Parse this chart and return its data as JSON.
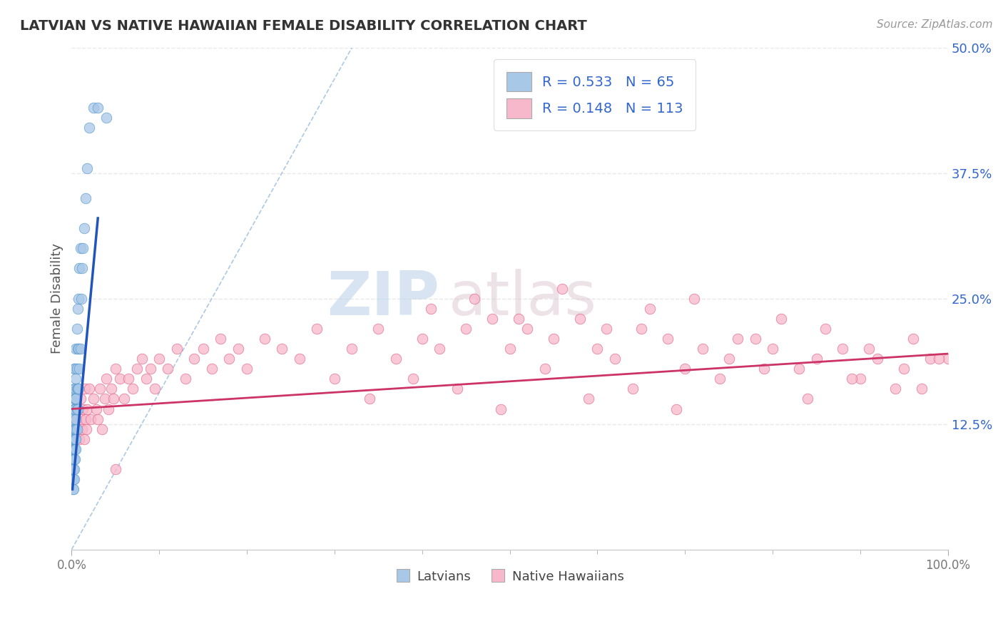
{
  "title": "LATVIAN VS NATIVE HAWAIIAN FEMALE DISABILITY CORRELATION CHART",
  "source": "Source: ZipAtlas.com",
  "ylabel": "Female Disability",
  "xlim": [
    0,
    1.0
  ],
  "ylim": [
    0,
    0.5
  ],
  "y_tick_labels": [
    "12.5%",
    "25.0%",
    "37.5%",
    "50.0%"
  ],
  "y_tick_values": [
    0.125,
    0.25,
    0.375,
    0.5
  ],
  "latvian_color": "#a8c8e8",
  "latvian_edge": "#5599cc",
  "hawaiian_color": "#f8b8cc",
  "hawaiian_edge": "#dd6688",
  "latvian_R": 0.533,
  "latvian_N": 65,
  "hawaiian_R": 0.148,
  "hawaiian_N": 113,
  "latvian_line_color": "#2255bb",
  "hawaiian_line_color": "#cc3366",
  "dashed_line_color": "#99bbdd",
  "watermark_zip": "ZIP",
  "watermark_atlas": "atlas",
  "background_color": "#ffffff",
  "grid_color": "#e8e8e8",
  "legend_text_color": "#3366cc",
  "latvian_scatter_x": [
    0.001,
    0.001,
    0.001,
    0.001,
    0.001,
    0.002,
    0.002,
    0.002,
    0.002,
    0.002,
    0.002,
    0.002,
    0.002,
    0.003,
    0.003,
    0.003,
    0.003,
    0.003,
    0.003,
    0.003,
    0.003,
    0.003,
    0.003,
    0.003,
    0.004,
    0.004,
    0.004,
    0.004,
    0.004,
    0.004,
    0.004,
    0.004,
    0.005,
    0.005,
    0.005,
    0.005,
    0.005,
    0.005,
    0.005,
    0.006,
    0.006,
    0.006,
    0.006,
    0.006,
    0.007,
    0.007,
    0.007,
    0.007,
    0.008,
    0.008,
    0.008,
    0.009,
    0.009,
    0.01,
    0.01,
    0.011,
    0.012,
    0.013,
    0.014,
    0.016,
    0.018,
    0.02,
    0.025,
    0.03,
    0.04
  ],
  "latvian_scatter_y": [
    0.06,
    0.07,
    0.08,
    0.09,
    0.1,
    0.06,
    0.07,
    0.08,
    0.09,
    0.1,
    0.11,
    0.12,
    0.14,
    0.07,
    0.08,
    0.09,
    0.1,
    0.11,
    0.12,
    0.13,
    0.14,
    0.15,
    0.16,
    0.18,
    0.09,
    0.1,
    0.11,
    0.12,
    0.14,
    0.15,
    0.16,
    0.18,
    0.1,
    0.11,
    0.12,
    0.13,
    0.15,
    0.17,
    0.2,
    0.12,
    0.14,
    0.16,
    0.18,
    0.22,
    0.14,
    0.16,
    0.2,
    0.24,
    0.16,
    0.2,
    0.25,
    0.18,
    0.28,
    0.2,
    0.3,
    0.25,
    0.28,
    0.3,
    0.32,
    0.35,
    0.38,
    0.42,
    0.44,
    0.44,
    0.43
  ],
  "hawaiian_scatter_x": [
    0.003,
    0.005,
    0.006,
    0.007,
    0.008,
    0.009,
    0.01,
    0.011,
    0.012,
    0.013,
    0.014,
    0.015,
    0.016,
    0.017,
    0.018,
    0.02,
    0.022,
    0.025,
    0.028,
    0.03,
    0.032,
    0.035,
    0.038,
    0.04,
    0.042,
    0.045,
    0.048,
    0.05,
    0.055,
    0.06,
    0.065,
    0.07,
    0.075,
    0.08,
    0.085,
    0.09,
    0.095,
    0.1,
    0.11,
    0.12,
    0.13,
    0.14,
    0.15,
    0.16,
    0.17,
    0.18,
    0.19,
    0.2,
    0.22,
    0.24,
    0.26,
    0.28,
    0.3,
    0.32,
    0.35,
    0.37,
    0.4,
    0.42,
    0.45,
    0.48,
    0.5,
    0.52,
    0.55,
    0.58,
    0.6,
    0.62,
    0.65,
    0.68,
    0.7,
    0.72,
    0.75,
    0.78,
    0.8,
    0.83,
    0.85,
    0.88,
    0.9,
    0.92,
    0.95,
    0.97,
    0.98,
    1.0,
    0.41,
    0.46,
    0.51,
    0.56,
    0.61,
    0.66,
    0.71,
    0.76,
    0.81,
    0.86,
    0.91,
    0.96,
    0.34,
    0.39,
    0.44,
    0.49,
    0.54,
    0.59,
    0.64,
    0.69,
    0.74,
    0.79,
    0.84,
    0.89,
    0.94,
    0.99,
    0.05
  ],
  "hawaiian_scatter_y": [
    0.15,
    0.14,
    0.13,
    0.12,
    0.14,
    0.11,
    0.15,
    0.13,
    0.12,
    0.14,
    0.11,
    0.16,
    0.13,
    0.12,
    0.14,
    0.16,
    0.13,
    0.15,
    0.14,
    0.13,
    0.16,
    0.12,
    0.15,
    0.17,
    0.14,
    0.16,
    0.15,
    0.18,
    0.17,
    0.15,
    0.17,
    0.16,
    0.18,
    0.19,
    0.17,
    0.18,
    0.16,
    0.19,
    0.18,
    0.2,
    0.17,
    0.19,
    0.2,
    0.18,
    0.21,
    0.19,
    0.2,
    0.18,
    0.21,
    0.2,
    0.19,
    0.22,
    0.17,
    0.2,
    0.22,
    0.19,
    0.21,
    0.2,
    0.22,
    0.23,
    0.2,
    0.22,
    0.21,
    0.23,
    0.2,
    0.19,
    0.22,
    0.21,
    0.18,
    0.2,
    0.19,
    0.21,
    0.2,
    0.18,
    0.19,
    0.2,
    0.17,
    0.19,
    0.18,
    0.16,
    0.19,
    0.19,
    0.24,
    0.25,
    0.23,
    0.26,
    0.22,
    0.24,
    0.25,
    0.21,
    0.23,
    0.22,
    0.2,
    0.21,
    0.15,
    0.17,
    0.16,
    0.14,
    0.18,
    0.15,
    0.16,
    0.14,
    0.17,
    0.18,
    0.15,
    0.17,
    0.16,
    0.19,
    0.08
  ],
  "hawaiian_line_x0": 0.0,
  "hawaiian_line_x1": 1.0,
  "hawaiian_line_y0": 0.14,
  "hawaiian_line_y1": 0.195,
  "latvian_line_x0": 0.001,
  "latvian_line_x1": 0.03,
  "latvian_line_y0": 0.06,
  "latvian_line_y1": 0.33
}
